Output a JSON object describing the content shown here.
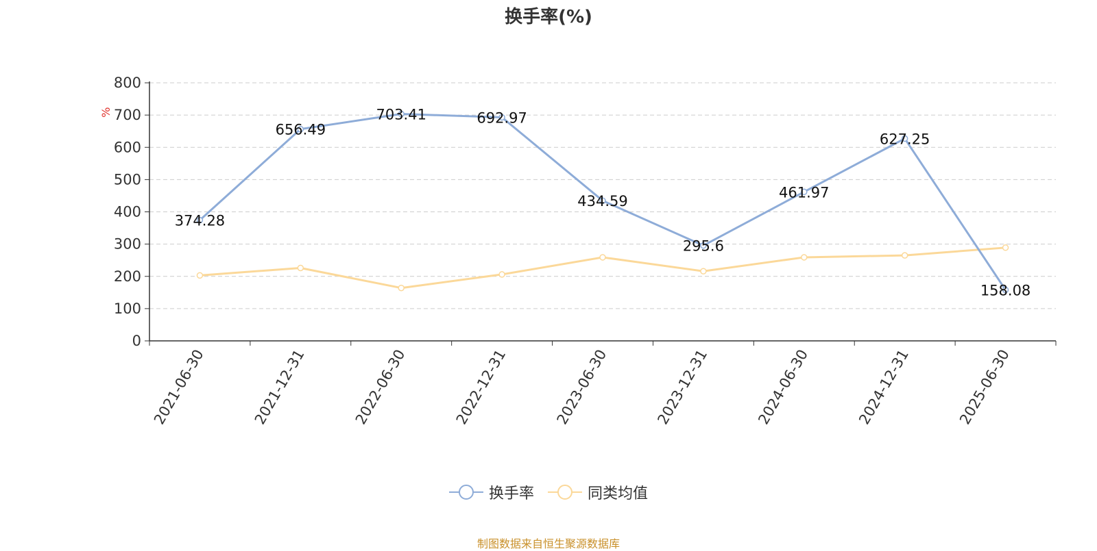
{
  "chart_data": {
    "type": "line",
    "title": "换手率(%)",
    "ylabel": "%",
    "ylim": [
      0,
      800
    ],
    "yticks": [
      0,
      100,
      200,
      300,
      400,
      500,
      600,
      700,
      800
    ],
    "grid": true,
    "legend_position": "bottom",
    "categories": [
      "2021-06-30",
      "2021-12-31",
      "2022-06-30",
      "2022-12-31",
      "2023-06-30",
      "2023-12-31",
      "2024-06-30",
      "2024-12-31",
      "2025-06-30"
    ],
    "series": [
      {
        "name": "换手率",
        "color": "#8eacd8",
        "values": [
          374.28,
          656.49,
          703.41,
          692.97,
          434.59,
          295.6,
          461.97,
          627.25,
          158.08
        ],
        "labels": [
          "374.28",
          "656.49",
          "703.41",
          "692.97",
          "434.59",
          "295.6",
          "461.97",
          "627.25",
          "158.08"
        ]
      },
      {
        "name": "同类均值",
        "color": "#fbd899",
        "values": [
          203,
          226,
          164,
          206,
          259,
          216,
          259,
          265,
          289
        ]
      }
    ],
    "source_note": "制图数据来自恒生聚源数据库",
    "source_color": "#c9902a",
    "unit_color": "#e0302a"
  }
}
